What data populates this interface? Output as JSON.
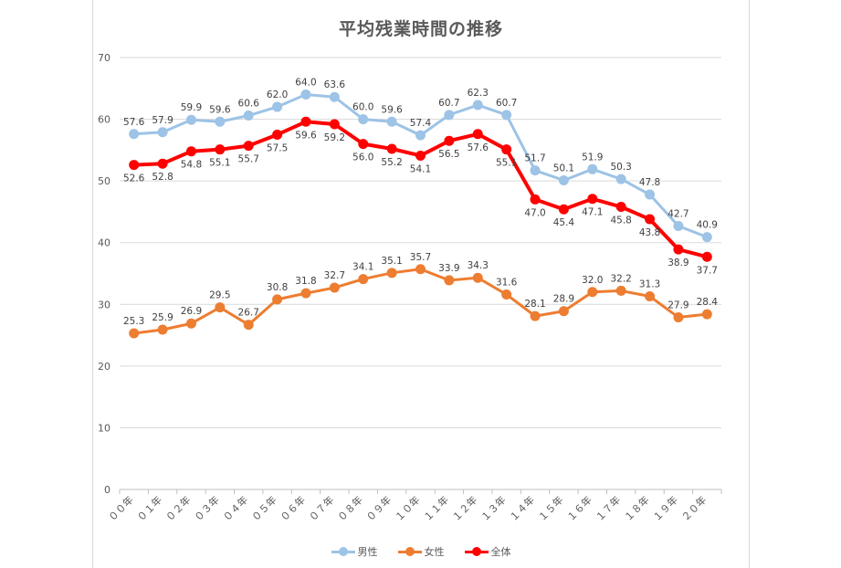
{
  "chart_data": {
    "type": "line",
    "title": "平均残業時間の推移",
    "categories": [
      "００年",
      "０１年",
      "０２年",
      "０３年",
      "０４年",
      "０５年",
      "０６年",
      "０７年",
      "０８年",
      "０９年",
      "１０年",
      "１１年",
      "１２年",
      "１３年",
      "１４年",
      "１５年",
      "１６年",
      "１７年",
      "１８年",
      "１９年",
      "２０年"
    ],
    "series": [
      {
        "name": "男性",
        "color": "#9dc3e6",
        "values": [
          57.6,
          57.9,
          59.9,
          59.6,
          60.6,
          62.0,
          64.0,
          63.6,
          60.0,
          59.6,
          57.4,
          60.7,
          62.3,
          60.7,
          51.7,
          50.1,
          51.9,
          50.3,
          47.8,
          42.7,
          40.9
        ],
        "labels": [
          "57.6",
          "57.9",
          "59.9",
          "59.6",
          "60.6",
          "62.0",
          "64.0",
          "63.6",
          "60.0",
          "59.6",
          "57.4",
          "60.7",
          "62.3",
          "60.7",
          "51.7",
          "50.1",
          "51.9",
          "50.3",
          "47.8",
          "42.7",
          "40.9"
        ]
      },
      {
        "name": "女性",
        "color": "#ed7d31",
        "values": [
          25.3,
          25.9,
          26.9,
          29.5,
          26.7,
          30.8,
          31.8,
          32.7,
          34.1,
          35.1,
          35.7,
          33.9,
          34.3,
          31.6,
          28.1,
          28.9,
          32.0,
          32.2,
          31.3,
          27.9,
          28.4
        ],
        "labels": [
          "25.3",
          "25.9",
          "26.9",
          "29.5",
          "26.7",
          "30.8",
          "31.8",
          "32.7",
          "34.1",
          "35.1",
          "35.7",
          "33.9",
          "34.3",
          "31.6",
          "28.1",
          "28.9",
          "32.0",
          "32.2",
          "31.3",
          "27.9",
          "28.4"
        ]
      },
      {
        "name": "全体",
        "color": "#ff0000",
        "values": [
          52.6,
          52.8,
          54.8,
          55.1,
          55.7,
          57.5,
          59.6,
          59.2,
          56.0,
          55.2,
          54.1,
          56.5,
          57.6,
          55.1,
          47.0,
          45.4,
          47.1,
          45.8,
          43.8,
          38.9,
          37.7
        ],
        "labels": [
          "52.6",
          "52.8",
          "54.8",
          "55.1",
          "55.7",
          "57.5",
          "59.6",
          "59.2",
          "56.0",
          "55.2",
          "54.1",
          "56.5",
          "57.6",
          "55.1",
          "47.0",
          "45.4",
          "47.1",
          "45.8",
          "43.8",
          "38.9",
          "37.7"
        ]
      }
    ],
    "y_ticks": [
      "0",
      "10",
      "20",
      "30",
      "40",
      "50",
      "60",
      "70"
    ],
    "ylim": [
      0,
      70
    ],
    "grid": true,
    "legend_position": "bottom"
  }
}
